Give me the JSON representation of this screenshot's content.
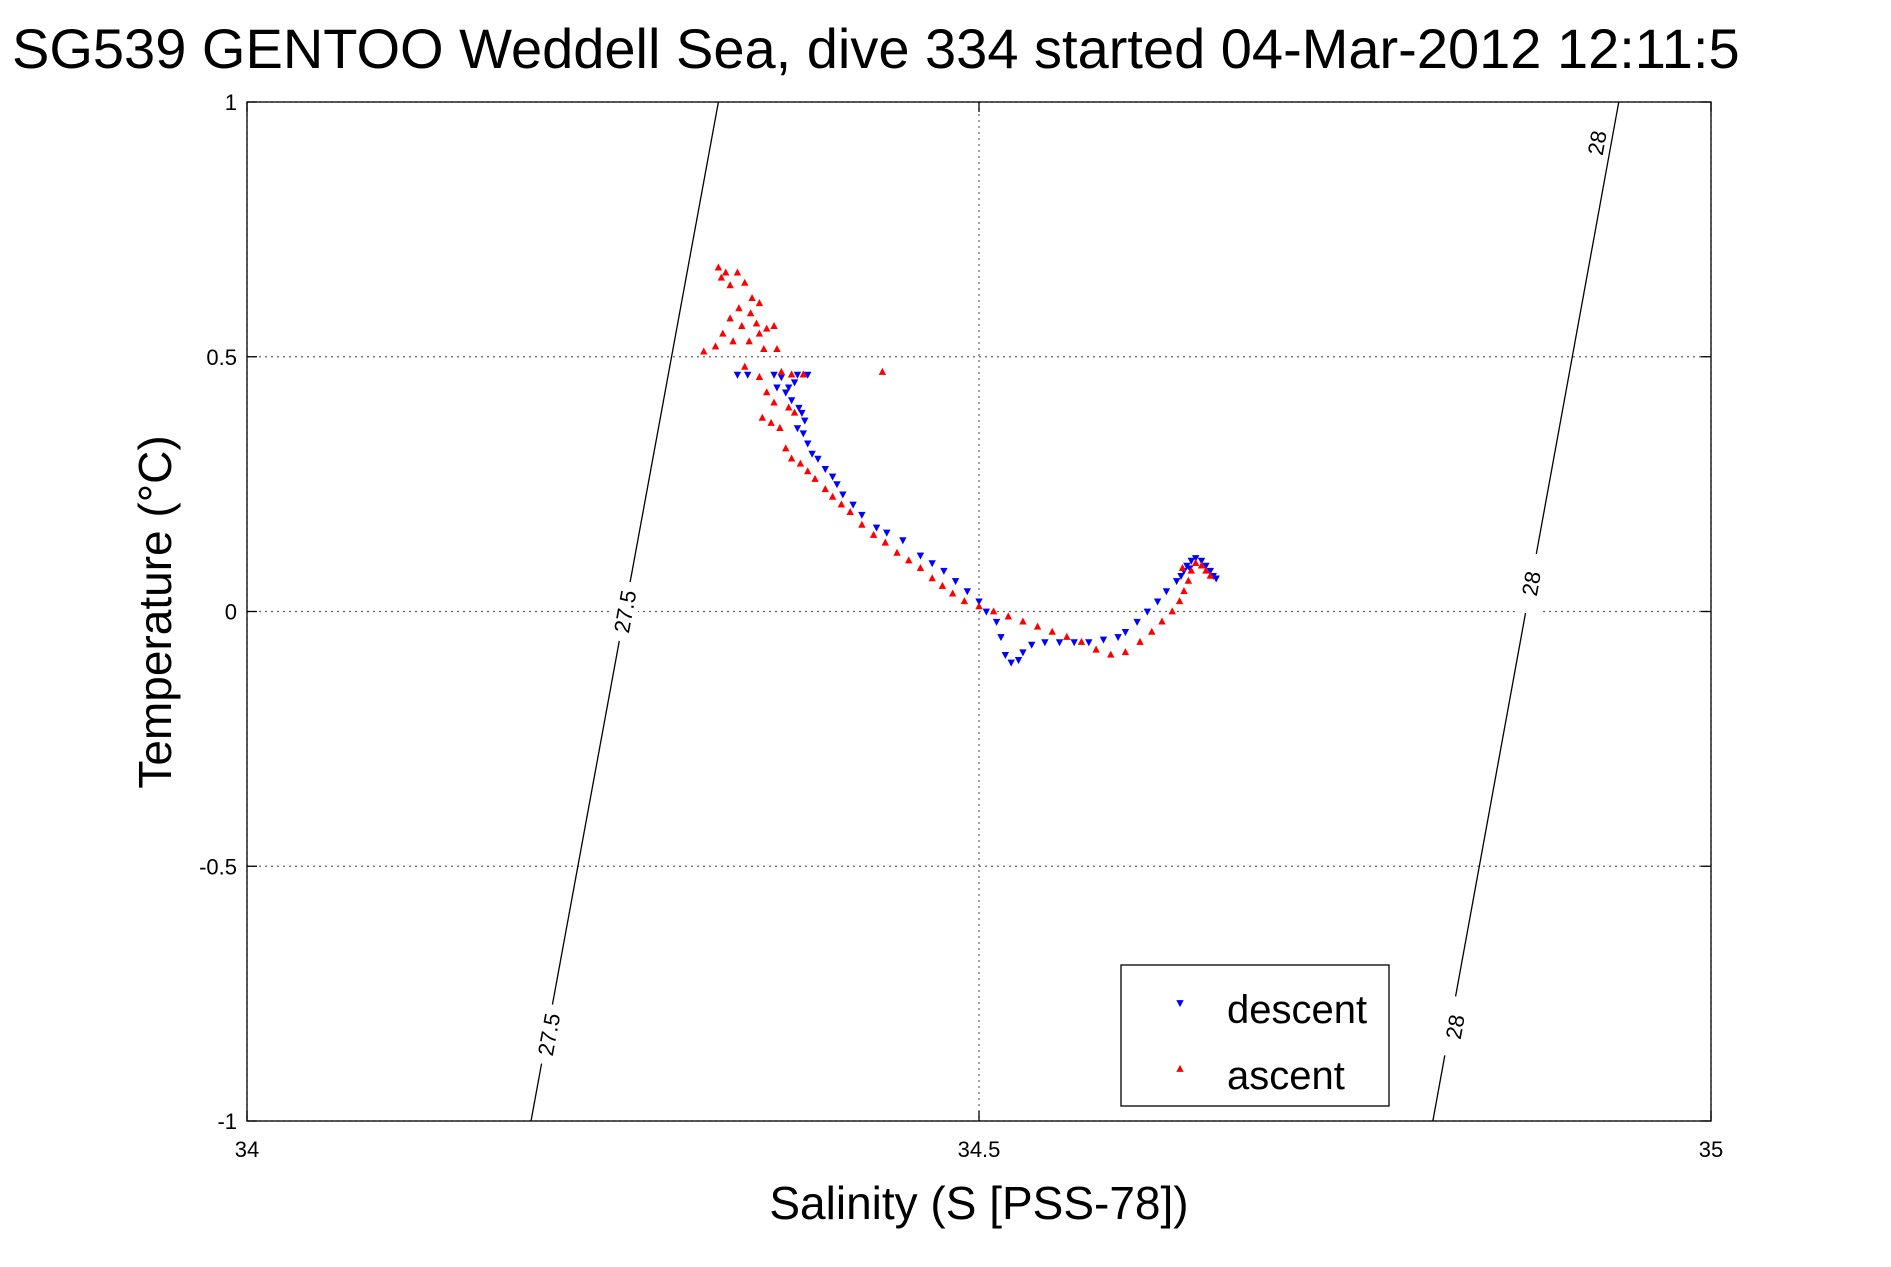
{
  "chart_data": {
    "type": "scatter",
    "title": "SG539 GENTOO Weddell Sea, dive 334 started 04-Mar-2012 12:11:5",
    "xlabel": "Salinity (S [PSS-78])",
    "ylabel": "Temperature (°C)",
    "xlim": [
      34,
      35
    ],
    "ylim": [
      -1,
      1
    ],
    "xticks": [
      34,
      34.5,
      35
    ],
    "xtick_labels": [
      "34",
      "34.5",
      "35"
    ],
    "yticks": [
      -1,
      -0.5,
      0,
      0.5,
      1
    ],
    "ytick_labels": [
      "-1",
      "-0.5",
      "0",
      "0.5",
      "1"
    ],
    "grid": true,
    "legend_position": "bottom-right",
    "isopycnals": [
      {
        "label": "27.5",
        "points": [
          [
            34.194,
            -1.0
          ],
          [
            34.322,
            1.0
          ]
        ],
        "label_positions": [
          [
            34.258,
            0.0
          ],
          [
            34.206,
            -0.83
          ]
        ]
      },
      {
        "label": "28",
        "points": [
          [
            34.81,
            -1.0
          ],
          [
            34.937,
            1.0
          ]
        ],
        "label_positions": [
          [
            34.877,
            0.055
          ],
          [
            34.922,
            0.92
          ],
          [
            34.825,
            -0.815
          ]
        ]
      }
    ],
    "series": [
      {
        "name": "descent",
        "marker": "triangle-down",
        "color": "#0000ff",
        "points": [
          [
            34.335,
            0.465
          ],
          [
            34.342,
            0.465
          ],
          [
            34.36,
            0.465
          ],
          [
            34.365,
            0.46
          ],
          [
            34.362,
            0.44
          ],
          [
            34.368,
            0.43
          ],
          [
            34.37,
            0.44
          ],
          [
            34.374,
            0.45
          ],
          [
            34.376,
            0.465
          ],
          [
            34.383,
            0.465
          ],
          [
            34.372,
            0.415
          ],
          [
            34.377,
            0.4
          ],
          [
            34.379,
            0.39
          ],
          [
            34.381,
            0.375
          ],
          [
            34.376,
            0.36
          ],
          [
            34.38,
            0.35
          ],
          [
            34.383,
            0.33
          ],
          [
            34.386,
            0.31
          ],
          [
            34.39,
            0.3
          ],
          [
            34.395,
            0.28
          ],
          [
            34.4,
            0.265
          ],
          [
            34.403,
            0.25
          ],
          [
            34.407,
            0.23
          ],
          [
            34.414,
            0.21
          ],
          [
            34.42,
            0.19
          ],
          [
            34.43,
            0.165
          ],
          [
            34.437,
            0.155
          ],
          [
            34.448,
            0.14
          ],
          [
            34.46,
            0.11
          ],
          [
            34.468,
            0.095
          ],
          [
            34.476,
            0.08
          ],
          [
            34.484,
            0.06
          ],
          [
            34.492,
            0.04
          ],
          [
            34.5,
            0.02
          ],
          [
            34.505,
            0.0
          ],
          [
            34.512,
            -0.02
          ],
          [
            34.515,
            -0.05
          ],
          [
            34.518,
            -0.085
          ],
          [
            34.522,
            -0.1
          ],
          [
            34.527,
            -0.095
          ],
          [
            34.53,
            -0.08
          ],
          [
            34.536,
            -0.065
          ],
          [
            34.545,
            -0.06
          ],
          [
            34.555,
            -0.06
          ],
          [
            34.565,
            -0.06
          ],
          [
            34.575,
            -0.06
          ],
          [
            34.585,
            -0.055
          ],
          [
            34.595,
            -0.05
          ],
          [
            34.6,
            -0.04
          ],
          [
            34.608,
            -0.02
          ],
          [
            34.615,
            0.0
          ],
          [
            34.622,
            0.02
          ],
          [
            34.628,
            0.04
          ],
          [
            34.635,
            0.06
          ],
          [
            34.64,
            0.08
          ],
          [
            34.642,
            0.09
          ],
          [
            34.645,
            0.1
          ],
          [
            34.648,
            0.105
          ],
          [
            34.652,
            0.1
          ],
          [
            34.655,
            0.09
          ],
          [
            34.658,
            0.08
          ],
          [
            34.66,
            0.07
          ],
          [
            34.662,
            0.065
          ],
          [
            34.644,
            0.085
          ],
          [
            34.638,
            0.07
          ]
        ]
      },
      {
        "name": "ascent",
        "marker": "triangle-up",
        "color": "#ff0000",
        "points": [
          [
            34.322,
            0.675
          ],
          [
            34.327,
            0.665
          ],
          [
            34.324,
            0.655
          ],
          [
            34.33,
            0.64
          ],
          [
            34.335,
            0.665
          ],
          [
            34.34,
            0.645
          ],
          [
            34.345,
            0.615
          ],
          [
            34.35,
            0.605
          ],
          [
            34.336,
            0.595
          ],
          [
            34.344,
            0.585
          ],
          [
            34.33,
            0.575
          ],
          [
            34.338,
            0.56
          ],
          [
            34.348,
            0.565
          ],
          [
            34.355,
            0.555
          ],
          [
            34.325,
            0.545
          ],
          [
            34.332,
            0.53
          ],
          [
            34.343,
            0.53
          ],
          [
            34.35,
            0.545
          ],
          [
            34.36,
            0.56
          ],
          [
            34.32,
            0.52
          ],
          [
            34.353,
            0.515
          ],
          [
            34.362,
            0.515
          ],
          [
            34.312,
            0.51
          ],
          [
            34.34,
            0.48
          ],
          [
            34.365,
            0.47
          ],
          [
            34.372,
            0.465
          ],
          [
            34.38,
            0.465
          ],
          [
            34.35,
            0.46
          ],
          [
            34.355,
            0.43
          ],
          [
            34.36,
            0.41
          ],
          [
            34.37,
            0.4
          ],
          [
            34.352,
            0.38
          ],
          [
            34.358,
            0.37
          ],
          [
            34.364,
            0.36
          ],
          [
            34.374,
            0.39
          ],
          [
            34.368,
            0.32
          ],
          [
            34.372,
            0.3
          ],
          [
            34.378,
            0.29
          ],
          [
            34.383,
            0.275
          ],
          [
            34.388,
            0.26
          ],
          [
            34.395,
            0.24
          ],
          [
            34.4,
            0.225
          ],
          [
            34.406,
            0.21
          ],
          [
            34.412,
            0.195
          ],
          [
            34.42,
            0.17
          ],
          [
            34.428,
            0.15
          ],
          [
            34.436,
            0.135
          ],
          [
            34.444,
            0.115
          ],
          [
            34.452,
            0.1
          ],
          [
            34.46,
            0.085
          ],
          [
            34.468,
            0.065
          ],
          [
            34.475,
            0.05
          ],
          [
            34.482,
            0.035
          ],
          [
            34.49,
            0.02
          ],
          [
            34.5,
            0.01
          ],
          [
            34.51,
            0.0
          ],
          [
            34.52,
            -0.01
          ],
          [
            34.53,
            -0.02
          ],
          [
            34.54,
            -0.03
          ],
          [
            34.55,
            -0.04
          ],
          [
            34.56,
            -0.05
          ],
          [
            34.57,
            -0.06
          ],
          [
            34.58,
            -0.075
          ],
          [
            34.59,
            -0.085
          ],
          [
            34.6,
            -0.08
          ],
          [
            34.61,
            -0.06
          ],
          [
            34.618,
            -0.04
          ],
          [
            34.625,
            -0.02
          ],
          [
            34.632,
            0.0
          ],
          [
            34.637,
            0.02
          ],
          [
            34.64,
            0.04
          ],
          [
            34.643,
            0.06
          ],
          [
            34.645,
            0.08
          ],
          [
            34.648,
            0.095
          ],
          [
            34.652,
            0.09
          ],
          [
            34.655,
            0.08
          ],
          [
            34.658,
            0.07
          ],
          [
            34.639,
            0.085
          ],
          [
            34.434,
            0.47
          ]
        ]
      }
    ]
  }
}
